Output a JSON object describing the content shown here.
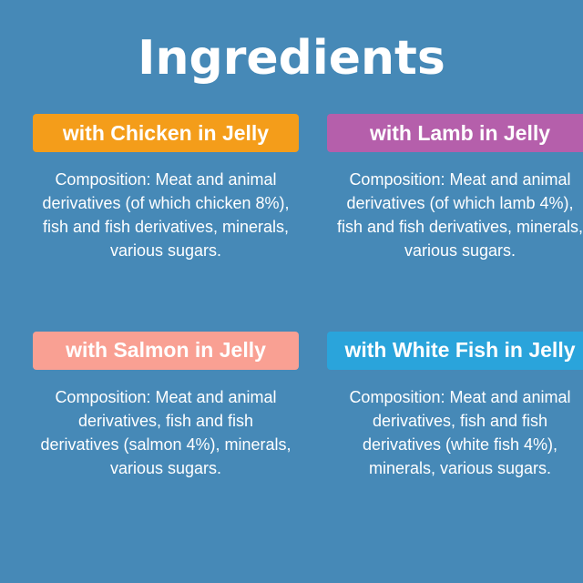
{
  "page": {
    "title": "Ingredients",
    "background_color": "#4689B7",
    "text_color": "#FFFFFF"
  },
  "variants": [
    {
      "id": "chicken",
      "banner_label": "with Chicken in Jelly",
      "banner_color": "#F49D1A",
      "composition_lines": [
        "Composition: Meat and animal",
        "derivatives (of which chicken 8%),",
        "fish and fish derivatives, minerals,",
        "various sugars."
      ]
    },
    {
      "id": "lamb",
      "banner_label": "with Lamb in Jelly",
      "banner_color": "#B55FAB",
      "composition_lines": [
        "Composition: Meat and animal",
        "derivatives (of which lamb 4%),",
        "fish and fish derivatives, minerals,",
        "various sugars."
      ]
    },
    {
      "id": "salmon",
      "banner_label": "with Salmon in Jelly",
      "banner_color": "#F9A093",
      "composition_lines": [
        "Composition: Meat and animal",
        "derivatives, fish and fish",
        "derivatives (salmon 4%), minerals,",
        "various sugars."
      ]
    },
    {
      "id": "white-fish",
      "banner_label": "with White Fish in Jelly",
      "banner_color": "#2AA4DB",
      "composition_lines": [
        "Composition: Meat and animal",
        "derivatives, fish and fish",
        "derivatives (white fish 4%),",
        "minerals, various sugars."
      ]
    }
  ]
}
